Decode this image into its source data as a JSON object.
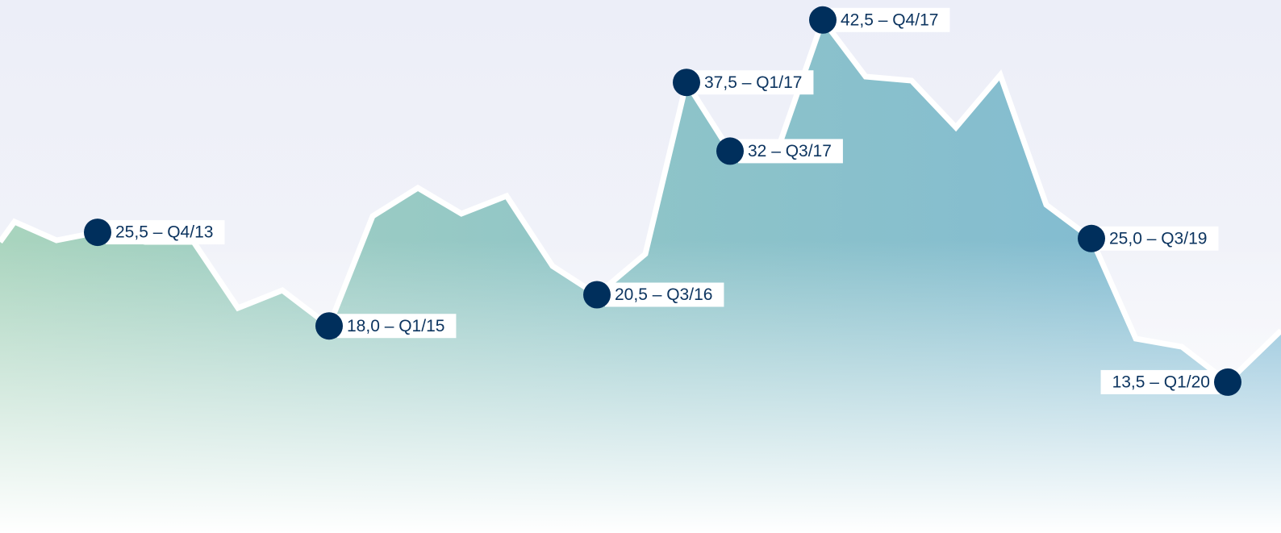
{
  "chart_data": {
    "type": "line",
    "color": "#002f5c",
    "values": [
      25.5,
      18.0,
      20.5,
      37.5,
      32,
      42.5,
      25.0,
      13.5
    ],
    "value_labels": [
      "25,5 – Q4/13",
      "18,0 – Q1/15",
      "20,5 – Q3/16",
      "37,5 – Q1/17",
      "32 – Q3/17",
      "42,5 – Q4/17",
      "25,0 – Q3/19",
      "13,5 – Q1/20"
    ],
    "ylim": [
      0,
      44.1
    ]
  }
}
